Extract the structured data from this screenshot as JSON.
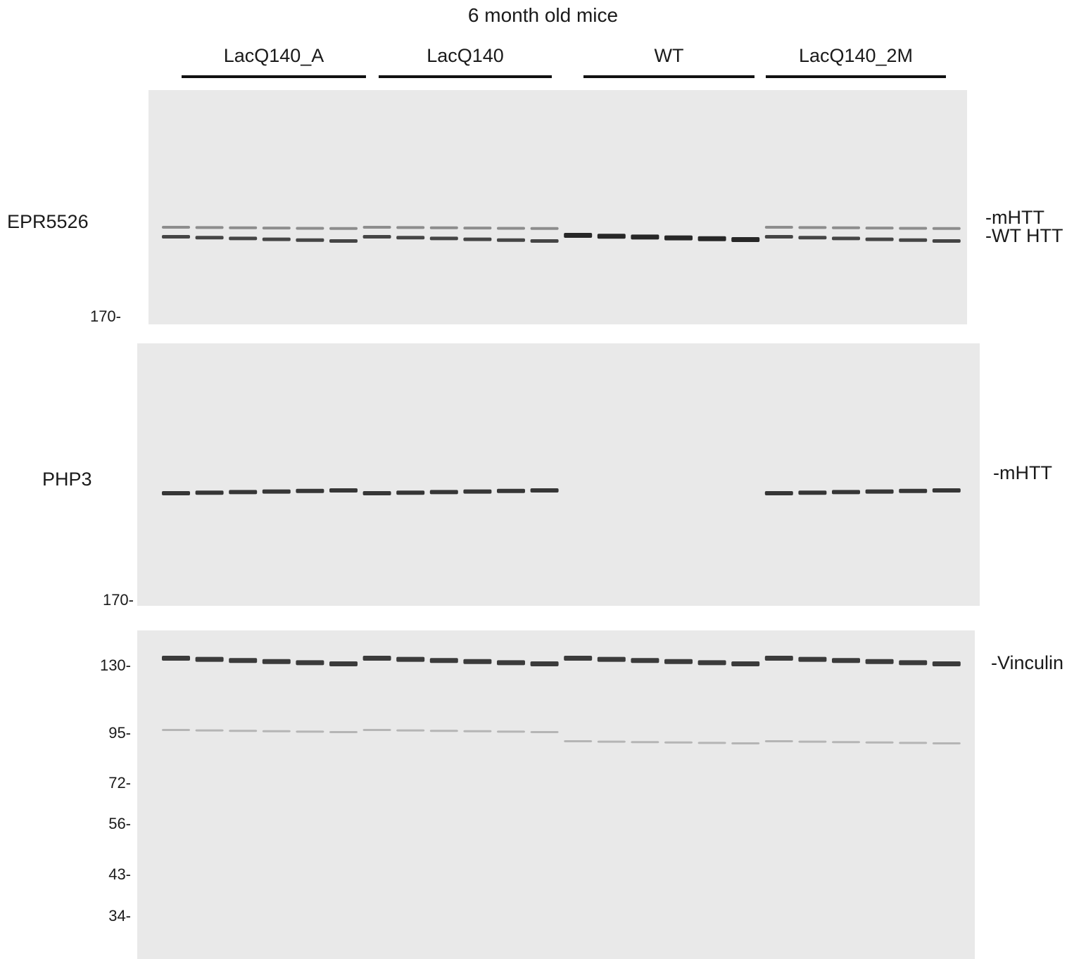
{
  "figure": {
    "title": "6 month old mice"
  },
  "groups": [
    {
      "label": "LacQ140_A"
    },
    {
      "label": "LacQ140"
    },
    {
      "label": "WT"
    },
    {
      "label": "LacQ140_2M"
    }
  ],
  "panels": [
    {
      "antibody": "EPR5526",
      "markers": [
        "170-"
      ],
      "band_labels": [
        "-mHTT",
        "-WT HTT"
      ]
    },
    {
      "antibody": "PHP3",
      "markers": [
        "170-"
      ],
      "band_labels": [
        "-mHTT"
      ]
    },
    {
      "antibody": "",
      "markers": [
        "130-",
        "95-",
        "72-",
        "56-",
        "43-",
        "34-"
      ],
      "band_labels": [
        "-Vinculin"
      ]
    }
  ],
  "lanes": {
    "count": 24,
    "genotype": [
      "LacQ140_A",
      "LacQ140_A",
      "LacQ140_A",
      "LacQ140_A",
      "LacQ140_A",
      "LacQ140_A",
      "LacQ140",
      "LacQ140",
      "LacQ140",
      "LacQ140",
      "LacQ140",
      "LacQ140",
      "WT",
      "WT",
      "WT",
      "WT",
      "WT",
      "WT",
      "LacQ140_2M",
      "LacQ140_2M",
      "LacQ140_2M",
      "LacQ140_2M",
      "LacQ140_2M",
      "LacQ140_2M"
    ]
  },
  "colors": {
    "background": "#ffffff",
    "membrane": "#e9e9e9",
    "band": "#1c1c1c"
  }
}
